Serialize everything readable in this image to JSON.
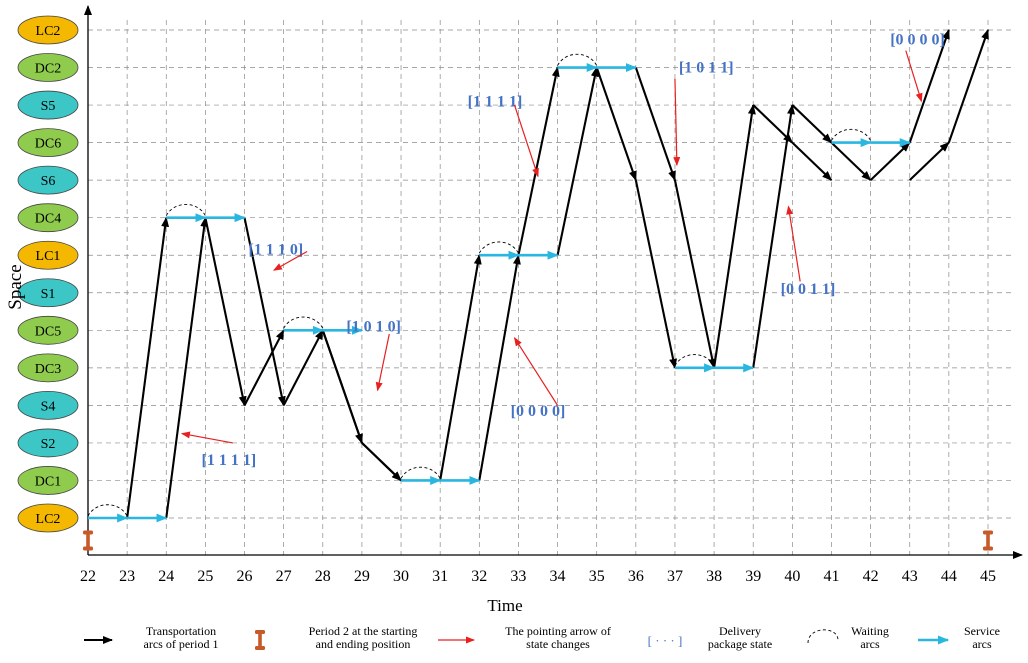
{
  "diagram": {
    "y_axis_label": "Space",
    "x_axis_label": "Time",
    "time_ticks": [
      "22",
      "23",
      "24",
      "25",
      "26",
      "27",
      "28",
      "29",
      "30",
      "31",
      "32",
      "33",
      "34",
      "35",
      "36",
      "37",
      "38",
      "39",
      "40",
      "41",
      "42",
      "43",
      "44",
      "45"
    ],
    "nodes": [
      {
        "label": "LC2",
        "color": "#f5b800"
      },
      {
        "label": "DC2",
        "color": "#8fcc4e"
      },
      {
        "label": "S5",
        "color": "#3cc6c6"
      },
      {
        "label": "DC6",
        "color": "#8fcc4e"
      },
      {
        "label": "S6",
        "color": "#3cc6c6"
      },
      {
        "label": "DC4",
        "color": "#8fcc4e"
      },
      {
        "label": "LC1",
        "color": "#f5b800"
      },
      {
        "label": "S1",
        "color": "#3cc6c6"
      },
      {
        "label": "DC5",
        "color": "#8fcc4e"
      },
      {
        "label": "DC3",
        "color": "#8fcc4e"
      },
      {
        "label": "S4",
        "color": "#3cc6c6"
      },
      {
        "label": "S2",
        "color": "#3cc6c6"
      },
      {
        "label": "DC1",
        "color": "#8fcc4e"
      },
      {
        "label": "LC2",
        "color": "#f5b800"
      }
    ],
    "path1": [
      [
        22,
        0
      ],
      [
        23,
        0
      ],
      [
        24,
        0
      ],
      [
        25,
        8
      ],
      [
        26,
        3
      ],
      [
        27,
        5
      ],
      [
        28,
        5
      ],
      [
        29,
        2
      ],
      [
        30,
        1
      ],
      [
        31,
        1
      ],
      [
        32,
        1
      ],
      [
        33,
        7
      ],
      [
        34,
        12
      ],
      [
        35,
        12
      ],
      [
        36,
        9
      ],
      [
        37,
        4
      ],
      [
        38,
        4
      ],
      [
        39,
        4
      ],
      [
        40,
        11
      ],
      [
        41,
        10
      ],
      [
        42,
        9
      ],
      [
        43,
        10
      ],
      [
        44,
        13
      ]
    ],
    "path2": [
      [
        22,
        0
      ],
      [
        23,
        0
      ],
      [
        24,
        8
      ],
      [
        25,
        8
      ],
      [
        26,
        8
      ],
      [
        27,
        3
      ],
      [
        28,
        5
      ],
      [
        29,
        2
      ],
      [
        30,
        1
      ],
      [
        31,
        1
      ],
      [
        32,
        7
      ],
      [
        33,
        7
      ],
      [
        34,
        7
      ],
      [
        35,
        12
      ],
      [
        36,
        12
      ],
      [
        37,
        9
      ],
      [
        38,
        4
      ],
      [
        39,
        11
      ],
      [
        40,
        10
      ],
      [
        41,
        9
      ],
      [
        42,
        9
      ],
      [
        43,
        9
      ],
      [
        44,
        10
      ],
      [
        45,
        13
      ]
    ],
    "service_arcs": [
      [
        22,
        0,
        23,
        0
      ],
      [
        23,
        0,
        24,
        0
      ],
      [
        24,
        8,
        25,
        8
      ],
      [
        25,
        8,
        26,
        8
      ],
      [
        27,
        5,
        28,
        5
      ],
      [
        28,
        5,
        29,
        5
      ],
      [
        30,
        1,
        31,
        1
      ],
      [
        31,
        1,
        32,
        1
      ],
      [
        32,
        7,
        33,
        7
      ],
      [
        33,
        7,
        34,
        7
      ],
      [
        34,
        12,
        35,
        12
      ],
      [
        35,
        12,
        36,
        12
      ],
      [
        37,
        4,
        38,
        4
      ],
      [
        38,
        4,
        39,
        4
      ],
      [
        41,
        10,
        42,
        10
      ],
      [
        42,
        10,
        43,
        10
      ]
    ],
    "waiting_arcs": [
      [
        22,
        0,
        23,
        0
      ],
      [
        24,
        8,
        25,
        8
      ],
      [
        27,
        5,
        28,
        5
      ],
      [
        30,
        1,
        31,
        1
      ],
      [
        32,
        7,
        33,
        7
      ],
      [
        34,
        12,
        35,
        12
      ],
      [
        37,
        4,
        38,
        4
      ],
      [
        41,
        10,
        42,
        10
      ]
    ],
    "state_labels": [
      {
        "text": "[1 1 1 1]",
        "t": 25.6,
        "s": 1.55
      },
      {
        "text": "[1 1 1 0]",
        "t": 26.8,
        "s": 7.15
      },
      {
        "text": "[1 0 1 0]",
        "t": 29.3,
        "s": 5.1
      },
      {
        "text": "[0 0 0 0]",
        "t": 33.5,
        "s": 2.85
      },
      {
        "text": "[1 1 1 1]",
        "t": 32.4,
        "s": 11.1
      },
      {
        "text": "[1 0 1 1]",
        "t": 37.8,
        "s": 12.0
      },
      {
        "text": "[0 0 0 0]",
        "t": 43.2,
        "s": 12.75
      },
      {
        "text": "[0 0 1 1]",
        "t": 40.4,
        "s": 6.1
      }
    ],
    "state_arrows": [
      [
        25.7,
        2.0,
        24.4,
        2.25
      ],
      [
        27.6,
        7.1,
        26.75,
        6.6
      ],
      [
        29.7,
        4.9,
        29.4,
        3.4
      ],
      [
        34.0,
        3.0,
        32.9,
        4.8
      ],
      [
        32.9,
        11.0,
        33.5,
        9.1
      ],
      [
        37.0,
        11.7,
        37.05,
        9.4
      ],
      [
        42.9,
        12.45,
        43.3,
        11.1
      ],
      [
        40.2,
        6.3,
        39.9,
        8.3
      ]
    ],
    "markers": [
      [
        22,
        -0.6
      ],
      [
        45,
        -0.6
      ]
    ]
  },
  "legend": {
    "transport": "Transportation\narcs of period 1",
    "period2": "Period 2 at the starting\nand ending position",
    "pointing": "The pointing arrow of\nstate changes",
    "delivery_symbol": "[ · · · ]",
    "delivery": "Delivery\npackage state",
    "waiting": "Waiting\narcs",
    "service": "Service\narcs"
  },
  "colors": {
    "transport": "#000000",
    "service": "#29b6e0",
    "pointing": "#e82020",
    "state_text": "#4472c4",
    "marker": "#c85a2a",
    "grid": "#8a8a8a"
  }
}
